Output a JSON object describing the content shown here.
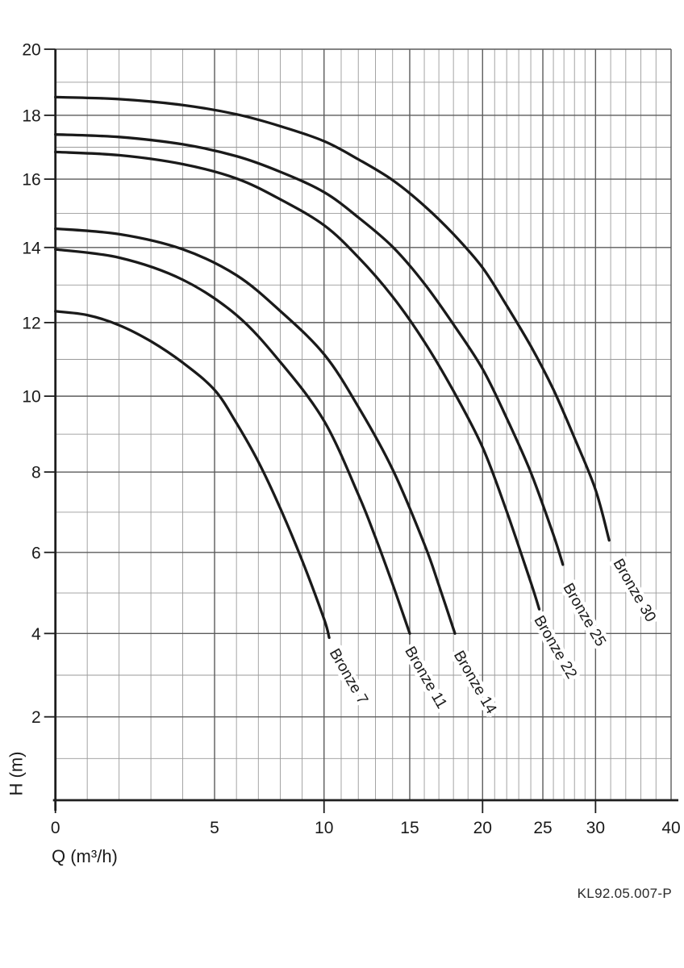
{
  "page": {
    "background": "#ffffff",
    "ref_code": "KL92.05.007-P"
  },
  "chart_data": {
    "type": "line",
    "title": "",
    "xlabel": "Q (m³/h)",
    "ylabel": "H (m)",
    "xlim": [
      0,
      40
    ],
    "ylim": [
      0,
      20
    ],
    "grid": "both, minor every 1 unit, major at labeled ticks",
    "legend_position": "labels rotated along curve ends",
    "scale_note": "flow axis is non-linear (log-like); f = fraction across plot area measured from screenshot",
    "x_axis": {
      "title": "Q (m³/h)",
      "ticks": [
        {
          "value": 0,
          "label": "0",
          "f": 0.0,
          "long_tick": true
        },
        {
          "value": 5,
          "label": "5",
          "f": 0.2585,
          "long_tick": false
        },
        {
          "value": 10,
          "label": "10",
          "f": 0.4363,
          "long_tick": true
        },
        {
          "value": 15,
          "label": "15",
          "f": 0.5755,
          "long_tick": false
        },
        {
          "value": 20,
          "label": "20",
          "f": 0.6938,
          "long_tick": true
        },
        {
          "value": 25,
          "label": "25",
          "f": 0.7917,
          "long_tick": false
        },
        {
          "value": 30,
          "label": "30",
          "f": 0.8773,
          "long_tick": true
        },
        {
          "value": 40,
          "label": "40",
          "f": 1.0,
          "long_tick": false
        }
      ],
      "minor": [
        1,
        2,
        3,
        4,
        6,
        7,
        8,
        9,
        11,
        12,
        13,
        14,
        16,
        17,
        18,
        19,
        21,
        22,
        23,
        24,
        26,
        27,
        28,
        29,
        32,
        34,
        36,
        38
      ]
    },
    "y_axis": {
      "title": "H (m)",
      "ticks": [
        {
          "value": 20,
          "label": "20",
          "f": 0.0
        },
        {
          "value": 18,
          "label": "18",
          "f": 0.088
        },
        {
          "value": 16,
          "label": "16",
          "f": 0.173
        },
        {
          "value": 14,
          "label": "14",
          "f": 0.264
        },
        {
          "value": 12,
          "label": "12",
          "f": 0.364
        },
        {
          "value": 10,
          "label": "10",
          "f": 0.462
        },
        {
          "value": 8,
          "label": "8",
          "f": 0.563
        },
        {
          "value": 6,
          "label": "6",
          "f": 0.67
        },
        {
          "value": 4,
          "label": "4",
          "f": 0.778
        },
        {
          "value": 2,
          "label": "2",
          "f": 0.889
        },
        {
          "value": 0,
          "label": "",
          "f": 1.0
        }
      ],
      "minor": [
        1,
        3,
        5,
        7,
        9,
        11,
        13,
        15,
        17,
        19
      ]
    },
    "series": [
      {
        "name": "Bronze 7",
        "points": [
          [
            0,
            12.3
          ],
          [
            1,
            12.2
          ],
          [
            2,
            11.93
          ],
          [
            3,
            11.49
          ],
          [
            4,
            10.91
          ],
          [
            5,
            10.17
          ],
          [
            6,
            9.29
          ],
          [
            7,
            8.27
          ],
          [
            8,
            7.1
          ],
          [
            9,
            5.8
          ],
          [
            10,
            4.36
          ],
          [
            10.3,
            3.9
          ]
        ],
        "label_at": [
          10.3,
          3.55
        ],
        "label_rotation_deg": 60
      },
      {
        "name": "Bronze 11",
        "points": [
          [
            0,
            13.95
          ],
          [
            2,
            13.73
          ],
          [
            4,
            13.14
          ],
          [
            6,
            12.2
          ],
          [
            8,
            10.93
          ],
          [
            10,
            9.35
          ],
          [
            12,
            7.44
          ],
          [
            13,
            6.37
          ],
          [
            14,
            5.22
          ],
          [
            15,
            4.0
          ]
        ],
        "label_at": [
          14.7,
          3.6
        ],
        "label_rotation_deg": 60
      },
      {
        "name": "Bronze 14",
        "points": [
          [
            0,
            14.55
          ],
          [
            2,
            14.39
          ],
          [
            4,
            13.95
          ],
          [
            6,
            13.26
          ],
          [
            8,
            12.31
          ],
          [
            10,
            11.14
          ],
          [
            12,
            9.72
          ],
          [
            14,
            8.07
          ],
          [
            16,
            6.21
          ],
          [
            17,
            5.19
          ],
          [
            18.1,
            4.0
          ]
        ],
        "label_at": [
          18.0,
          3.5
        ],
        "label_rotation_deg": 60
      },
      {
        "name": "Bronze 22",
        "points": [
          [
            0,
            16.85
          ],
          [
            2,
            16.75
          ],
          [
            4,
            16.47
          ],
          [
            6,
            16.02
          ],
          [
            8,
            15.41
          ],
          [
            10,
            14.65
          ],
          [
            12,
            13.74
          ],
          [
            14,
            12.69
          ],
          [
            16,
            11.48
          ],
          [
            18,
            10.14
          ],
          [
            20,
            8.65
          ],
          [
            22,
            7.02
          ],
          [
            24,
            5.26
          ],
          [
            24.7,
            4.6
          ]
        ],
        "label_at": [
          24.25,
          4.35
        ],
        "label_rotation_deg": 60
      },
      {
        "name": "Bronze 25",
        "points": [
          [
            0,
            17.4
          ],
          [
            2,
            17.32
          ],
          [
            4,
            17.09
          ],
          [
            6,
            16.72
          ],
          [
            8,
            16.23
          ],
          [
            10,
            15.62
          ],
          [
            12,
            14.88
          ],
          [
            14,
            14.02
          ],
          [
            16,
            13.04
          ],
          [
            18,
            11.95
          ],
          [
            20,
            10.74
          ],
          [
            22,
            9.42
          ],
          [
            24,
            7.99
          ],
          [
            26,
            6.44
          ],
          [
            26.9,
            5.7
          ]
        ],
        "label_at": [
          26.9,
          5.15
        ],
        "label_rotation_deg": 60
      },
      {
        "name": "Bronze 30",
        "points": [
          [
            0,
            18.55
          ],
          [
            2,
            18.49
          ],
          [
            4,
            18.31
          ],
          [
            6,
            18.03
          ],
          [
            8,
            17.66
          ],
          [
            10,
            17.19
          ],
          [
            12,
            16.62
          ],
          [
            14,
            15.97
          ],
          [
            16,
            15.22
          ],
          [
            18,
            14.39
          ],
          [
            20,
            13.46
          ],
          [
            22,
            12.45
          ],
          [
            24,
            11.36
          ],
          [
            26,
            10.18
          ],
          [
            28,
            8.9
          ],
          [
            30,
            7.56
          ],
          [
            31.8,
            6.3
          ]
        ],
        "label_at": [
          32.3,
          5.75
        ],
        "label_rotation_deg": 60
      }
    ],
    "styles": {
      "curve_color": "#1a1a1a",
      "grid_minor_color": "#9a9a9a",
      "grid_major_color": "#5c5c5c",
      "axis_color": "#1e1e1e",
      "text_color": "#1a1a1a",
      "label_halo_color": "#ffffff"
    }
  }
}
